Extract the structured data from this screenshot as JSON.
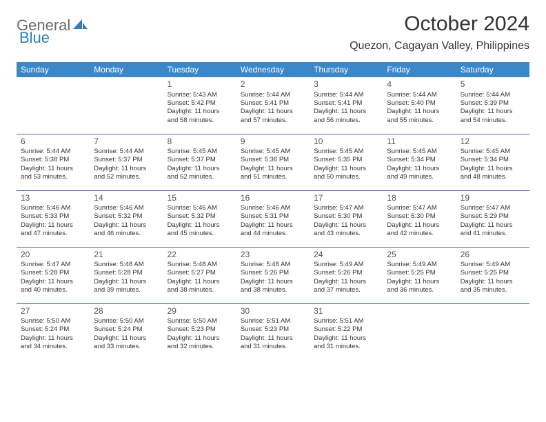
{
  "brand": {
    "part1": "General",
    "part2": "Blue"
  },
  "title": "October 2024",
  "location": "Quezon, Cagayan Valley, Philippines",
  "colors": {
    "header_bg": "#3b87c8",
    "header_text": "#ffffff",
    "row_border": "#3b6fa0",
    "text": "#333333",
    "logo_gray": "#6b6b6b",
    "logo_blue": "#2f7fc1",
    "background": "#ffffff"
  },
  "weekdays": [
    "Sunday",
    "Monday",
    "Tuesday",
    "Wednesday",
    "Thursday",
    "Friday",
    "Saturday"
  ],
  "weeks": [
    [
      null,
      null,
      {
        "n": "1",
        "sr": "5:43 AM",
        "ss": "5:42 PM",
        "dl": "11 hours and 58 minutes."
      },
      {
        "n": "2",
        "sr": "5:44 AM",
        "ss": "5:41 PM",
        "dl": "11 hours and 57 minutes."
      },
      {
        "n": "3",
        "sr": "5:44 AM",
        "ss": "5:41 PM",
        "dl": "11 hours and 56 minutes."
      },
      {
        "n": "4",
        "sr": "5:44 AM",
        "ss": "5:40 PM",
        "dl": "11 hours and 55 minutes."
      },
      {
        "n": "5",
        "sr": "5:44 AM",
        "ss": "5:39 PM",
        "dl": "11 hours and 54 minutes."
      }
    ],
    [
      {
        "n": "6",
        "sr": "5:44 AM",
        "ss": "5:38 PM",
        "dl": "11 hours and 53 minutes."
      },
      {
        "n": "7",
        "sr": "5:44 AM",
        "ss": "5:37 PM",
        "dl": "11 hours and 52 minutes."
      },
      {
        "n": "8",
        "sr": "5:45 AM",
        "ss": "5:37 PM",
        "dl": "11 hours and 52 minutes."
      },
      {
        "n": "9",
        "sr": "5:45 AM",
        "ss": "5:36 PM",
        "dl": "11 hours and 51 minutes."
      },
      {
        "n": "10",
        "sr": "5:45 AM",
        "ss": "5:35 PM",
        "dl": "11 hours and 50 minutes."
      },
      {
        "n": "11",
        "sr": "5:45 AM",
        "ss": "5:34 PM",
        "dl": "11 hours and 49 minutes."
      },
      {
        "n": "12",
        "sr": "5:45 AM",
        "ss": "5:34 PM",
        "dl": "11 hours and 48 minutes."
      }
    ],
    [
      {
        "n": "13",
        "sr": "5:46 AM",
        "ss": "5:33 PM",
        "dl": "11 hours and 47 minutes."
      },
      {
        "n": "14",
        "sr": "5:46 AM",
        "ss": "5:32 PM",
        "dl": "11 hours and 46 minutes."
      },
      {
        "n": "15",
        "sr": "5:46 AM",
        "ss": "5:32 PM",
        "dl": "11 hours and 45 minutes."
      },
      {
        "n": "16",
        "sr": "5:46 AM",
        "ss": "5:31 PM",
        "dl": "11 hours and 44 minutes."
      },
      {
        "n": "17",
        "sr": "5:47 AM",
        "ss": "5:30 PM",
        "dl": "11 hours and 43 minutes."
      },
      {
        "n": "18",
        "sr": "5:47 AM",
        "ss": "5:30 PM",
        "dl": "11 hours and 42 minutes."
      },
      {
        "n": "19",
        "sr": "5:47 AM",
        "ss": "5:29 PM",
        "dl": "11 hours and 41 minutes."
      }
    ],
    [
      {
        "n": "20",
        "sr": "5:47 AM",
        "ss": "5:28 PM",
        "dl": "11 hours and 40 minutes."
      },
      {
        "n": "21",
        "sr": "5:48 AM",
        "ss": "5:28 PM",
        "dl": "11 hours and 39 minutes."
      },
      {
        "n": "22",
        "sr": "5:48 AM",
        "ss": "5:27 PM",
        "dl": "11 hours and 38 minutes."
      },
      {
        "n": "23",
        "sr": "5:48 AM",
        "ss": "5:26 PM",
        "dl": "11 hours and 38 minutes."
      },
      {
        "n": "24",
        "sr": "5:49 AM",
        "ss": "5:26 PM",
        "dl": "11 hours and 37 minutes."
      },
      {
        "n": "25",
        "sr": "5:49 AM",
        "ss": "5:25 PM",
        "dl": "11 hours and 36 minutes."
      },
      {
        "n": "26",
        "sr": "5:49 AM",
        "ss": "5:25 PM",
        "dl": "11 hours and 35 minutes."
      }
    ],
    [
      {
        "n": "27",
        "sr": "5:50 AM",
        "ss": "5:24 PM",
        "dl": "11 hours and 34 minutes."
      },
      {
        "n": "28",
        "sr": "5:50 AM",
        "ss": "5:24 PM",
        "dl": "11 hours and 33 minutes."
      },
      {
        "n": "29",
        "sr": "5:50 AM",
        "ss": "5:23 PM",
        "dl": "11 hours and 32 minutes."
      },
      {
        "n": "30",
        "sr": "5:51 AM",
        "ss": "5:23 PM",
        "dl": "11 hours and 31 minutes."
      },
      {
        "n": "31",
        "sr": "5:51 AM",
        "ss": "5:22 PM",
        "dl": "11 hours and 31 minutes."
      },
      null,
      null
    ]
  ],
  "labels": {
    "sunrise": "Sunrise:",
    "sunset": "Sunset:",
    "daylight": "Daylight:"
  }
}
